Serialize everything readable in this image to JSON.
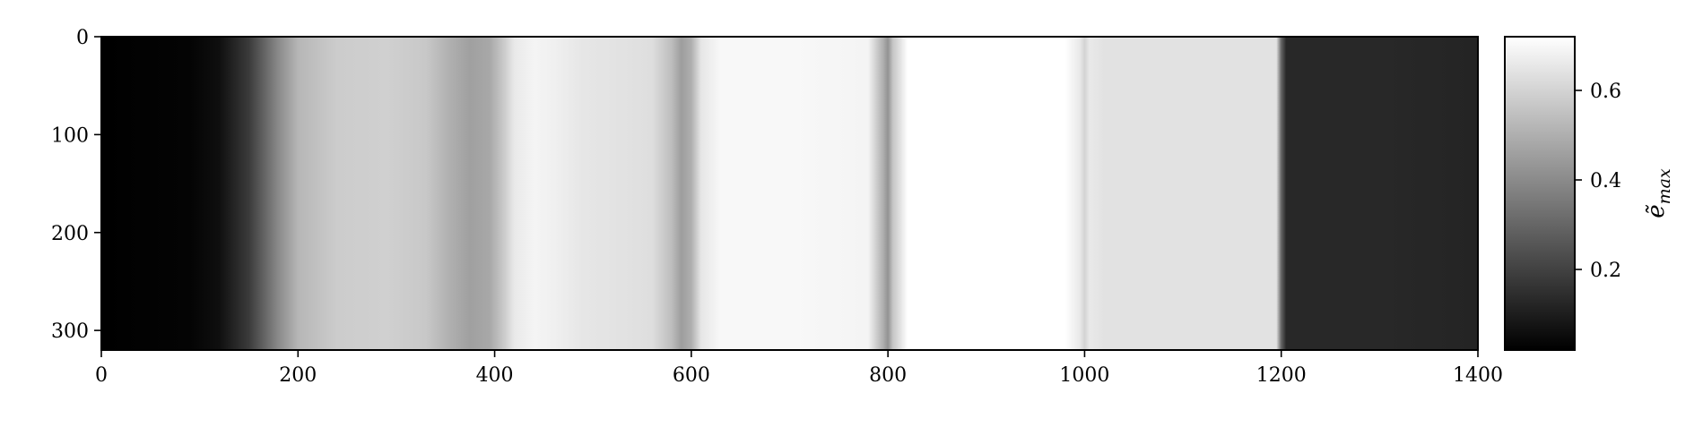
{
  "chart_data": {
    "type": "heatmap",
    "title": "",
    "xlabel": "",
    "ylabel": "",
    "xlim": [
      0,
      1400
    ],
    "ylim": [
      320,
      0
    ],
    "x_ticks": [
      0,
      200,
      400,
      600,
      800,
      1000,
      1200,
      1400
    ],
    "x_tick_labels": [
      "0",
      "200",
      "400",
      "600",
      "800",
      "1000",
      "1200",
      "1400"
    ],
    "y_ticks": [
      0,
      100,
      200,
      300
    ],
    "y_tick_labels": [
      "0",
      "100",
      "200",
      "300"
    ],
    "colormap": "gray",
    "color_range": [
      0.02,
      0.72
    ],
    "colorbar": {
      "label": "ẽ",
      "label_subscript": "max",
      "ticks": [
        0.2,
        0.4,
        0.6
      ],
      "tick_labels": [
        "0.2",
        "0.4",
        "0.6"
      ]
    },
    "column_profile": {
      "x": [
        0,
        90,
        120,
        150,
        180,
        200,
        240,
        290,
        330,
        355,
        375,
        395,
        410,
        420,
        440,
        460,
        490,
        530,
        560,
        580,
        590,
        600,
        610,
        630,
        700,
        780,
        795,
        800,
        805,
        820,
        900,
        980,
        995,
        1000,
        1005,
        1020,
        1100,
        1195,
        1200,
        1205,
        1300,
        1400
      ],
      "value": [
        0.02,
        0.03,
        0.06,
        0.18,
        0.4,
        0.52,
        0.58,
        0.59,
        0.57,
        0.5,
        0.46,
        0.48,
        0.58,
        0.66,
        0.69,
        0.68,
        0.65,
        0.64,
        0.63,
        0.54,
        0.45,
        0.5,
        0.65,
        0.7,
        0.7,
        0.69,
        0.5,
        0.42,
        0.56,
        0.72,
        0.72,
        0.72,
        0.66,
        0.6,
        0.66,
        0.64,
        0.64,
        0.64,
        0.3,
        0.13,
        0.13,
        0.12
      ]
    }
  }
}
